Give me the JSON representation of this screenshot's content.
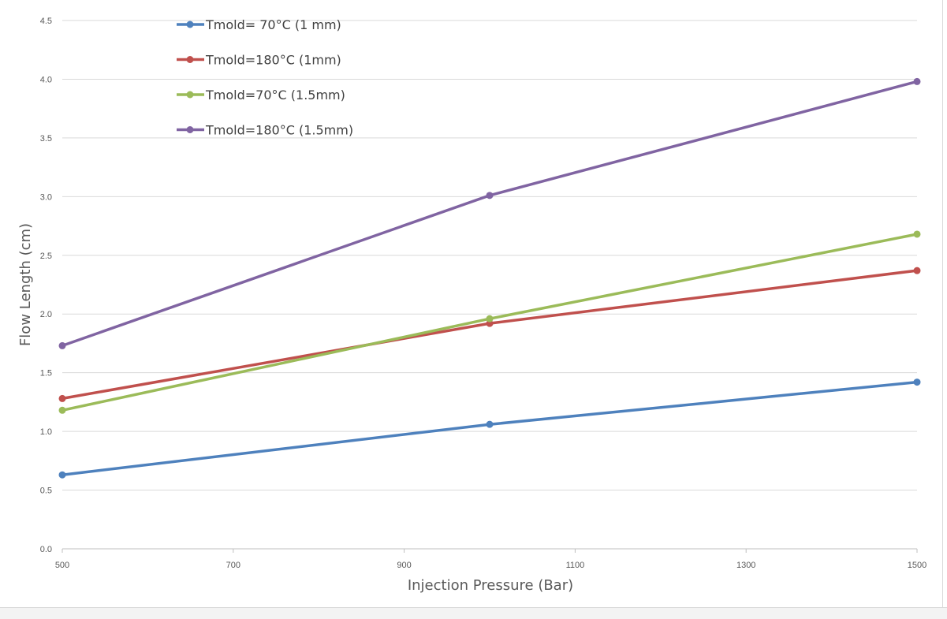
{
  "chart_data": {
    "type": "line",
    "title": "",
    "xlabel": "Injection Pressure (Bar)",
    "ylabel": "Flow Length (cm)",
    "xlim": [
      500,
      1500
    ],
    "ylim": [
      0,
      4.5
    ],
    "x_ticks": [
      "500",
      "700",
      "900",
      "1100",
      "1300",
      "1500"
    ],
    "y_ticks": [
      "0.0",
      "0.5",
      "1.0",
      "1.5",
      "2.0",
      "2.5",
      "3.0",
      "3.5",
      "4.0",
      "4.5"
    ],
    "grid": true,
    "legend_position": "top-left",
    "x": [
      500,
      1000,
      1500
    ],
    "series": [
      {
        "name": "Tmold= 70°C (1 mm)",
        "color": "#4e81bd",
        "values": [
          0.63,
          1.06,
          1.42
        ]
      },
      {
        "name": "Tmold=180°C (1mm)",
        "color": "#c0504d",
        "values": [
          1.28,
          1.92,
          2.37
        ]
      },
      {
        "name": "Tmold=70°C (1.5mm)",
        "color": "#9bbb59",
        "values": [
          1.18,
          1.96,
          2.68
        ]
      },
      {
        "name": "Tmold=180°C (1.5mm)",
        "color": "#8064a2",
        "values": [
          1.73,
          3.01,
          3.98
        ]
      }
    ]
  }
}
